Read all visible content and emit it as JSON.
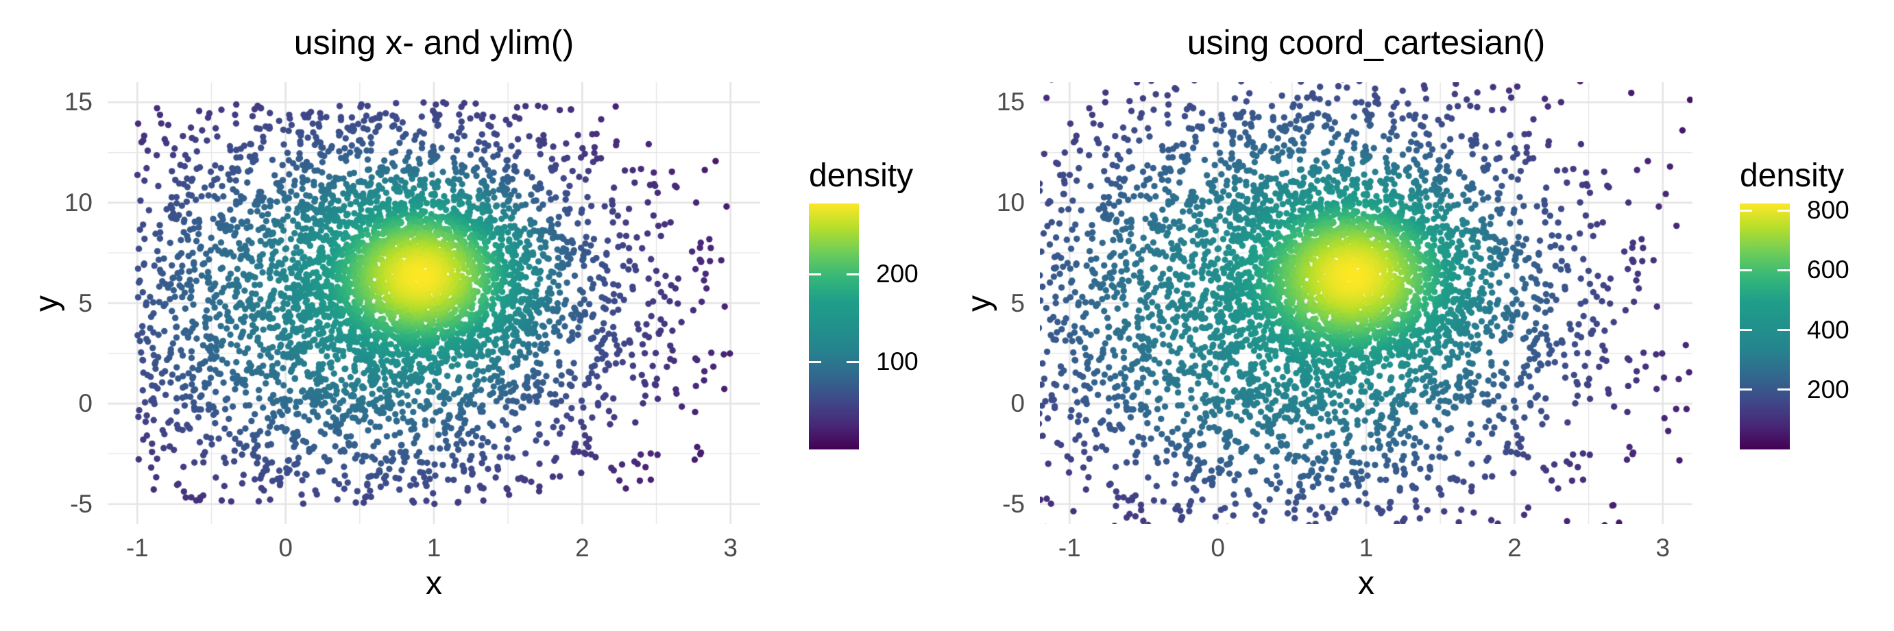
{
  "figure": {
    "background": "#ffffff"
  },
  "palette": {
    "viridis": [
      "#440154",
      "#482878",
      "#3E4A89",
      "#31688E",
      "#26828E",
      "#21918C",
      "#1F9E89",
      "#35B779",
      "#6DCD59",
      "#B4DE2C",
      "#FDE725"
    ],
    "gridline": "#E4E4E4",
    "tick_label_color": "#4D4D4D",
    "text_color": "#000000"
  },
  "chart_data": [
    {
      "type": "scatter",
      "title": "using x- and ylim()",
      "xlabel": "x",
      "ylabel": "y",
      "x_ticks": [
        -1,
        0,
        1,
        2,
        3
      ],
      "y_ticks": [
        -5,
        0,
        5,
        10,
        15
      ],
      "x_minor_ticks": [
        -0.5,
        0.5,
        1.5,
        2.5
      ],
      "y_minor_ticks": [
        -2.5,
        2.5,
        7.5,
        12.5
      ],
      "x_range": [
        -1.2,
        3.2
      ],
      "y_range": [
        -6,
        16
      ],
      "grid": true,
      "legend_position": "right",
      "data_clip": {
        "x": [
          -1,
          3
        ],
        "y": [
          -5,
          15
        ]
      },
      "legend": {
        "title": "density",
        "ticks": [
          100,
          200
        ],
        "domain": [
          0,
          281
        ]
      },
      "points": {
        "n": 5600,
        "seed": 20240607,
        "mixture": [
          {
            "weight": 0.67,
            "mx": 0.55,
            "sx": 1.05,
            "my": 5.0,
            "sy": 5.8
          },
          {
            "weight": 0.33,
            "mx": 0.92,
            "sx": 0.38,
            "my": 6.4,
            "sy": 2.2
          }
        ],
        "color_exponent": 0.58,
        "point_radius": 4.7
      }
    },
    {
      "type": "scatter",
      "title": "using coord_cartesian()",
      "xlabel": "x",
      "ylabel": "y",
      "x_ticks": [
        -1,
        0,
        1,
        2,
        3
      ],
      "y_ticks": [
        -5,
        0,
        5,
        10,
        15
      ],
      "x_minor_ticks": [
        -0.5,
        0.5,
        1.5,
        2.5
      ],
      "y_minor_ticks": [
        -2.5,
        2.5,
        7.5,
        12.5
      ],
      "x_range": [
        -1.2,
        3.2
      ],
      "y_range": [
        -6,
        16
      ],
      "grid": true,
      "legend_position": "right",
      "data_clip": null,
      "legend": {
        "title": "density",
        "ticks": [
          200,
          400,
          600,
          800
        ],
        "domain": [
          0,
          823
        ]
      },
      "points": {
        "n": 5600,
        "seed": 20240607,
        "mixture": [
          {
            "weight": 0.67,
            "mx": 0.55,
            "sx": 1.05,
            "my": 5.0,
            "sy": 5.8
          },
          {
            "weight": 0.33,
            "mx": 0.92,
            "sx": 0.38,
            "my": 6.4,
            "sy": 2.2
          }
        ],
        "color_exponent": 0.5,
        "point_radius": 4.7
      }
    }
  ]
}
